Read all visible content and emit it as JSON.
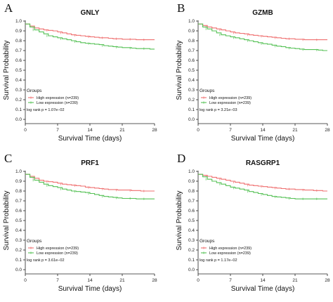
{
  "colors": {
    "high": "#ef6f6f",
    "low": "#55c155",
    "axis": "#222222"
  },
  "chart_data": [
    {
      "type": "line",
      "panel": "A",
      "title": "GNLY",
      "xlabel": "Survival Time (days)",
      "ylabel": "Survival Probability",
      "xlim": [
        0,
        28
      ],
      "ylim": [
        0,
        1
      ],
      "xticks": [
        0,
        7,
        14,
        21,
        28
      ],
      "yticks": [
        0.0,
        0.1,
        0.2,
        0.3,
        0.4,
        0.5,
        0.6,
        0.7,
        0.8,
        0.9,
        1.0
      ],
      "legend_title": "Groups",
      "legend_position": "bottom-left",
      "pvalue_text": "log rank p = 1.07e−02",
      "series": [
        {
          "name": "High expression (n=239)",
          "color_key": "high",
          "x": [
            0,
            1,
            2,
            3,
            4,
            5,
            6,
            7,
            8,
            9,
            10,
            11,
            12,
            13,
            14,
            15,
            16,
            17,
            18,
            19,
            20,
            21,
            22,
            23,
            24,
            25,
            26,
            27,
            28
          ],
          "y": [
            0.97,
            0.95,
            0.93,
            0.92,
            0.91,
            0.905,
            0.9,
            0.89,
            0.88,
            0.87,
            0.86,
            0.855,
            0.85,
            0.845,
            0.84,
            0.835,
            0.83,
            0.83,
            0.825,
            0.82,
            0.82,
            0.815,
            0.815,
            0.815,
            0.81,
            0.81,
            0.81,
            0.81,
            0.81
          ]
        },
        {
          "name": "Low expression (n=239)",
          "color_key": "low",
          "x": [
            0,
            1,
            2,
            3,
            4,
            5,
            6,
            7,
            8,
            9,
            10,
            11,
            12,
            13,
            14,
            15,
            16,
            17,
            18,
            19,
            20,
            21,
            22,
            23,
            24,
            25,
            26,
            27,
            28
          ],
          "y": [
            0.97,
            0.94,
            0.91,
            0.89,
            0.87,
            0.85,
            0.84,
            0.83,
            0.82,
            0.81,
            0.8,
            0.79,
            0.78,
            0.775,
            0.77,
            0.765,
            0.76,
            0.75,
            0.745,
            0.74,
            0.735,
            0.73,
            0.73,
            0.725,
            0.72,
            0.72,
            0.72,
            0.715,
            0.715
          ]
        }
      ]
    },
    {
      "type": "line",
      "panel": "B",
      "title": "GZMB",
      "xlabel": "Survival Time (days)",
      "ylabel": "Survival Probability",
      "xlim": [
        0,
        28
      ],
      "ylim": [
        0,
        1
      ],
      "xticks": [
        0,
        7,
        14,
        21,
        28
      ],
      "yticks": [
        0.0,
        0.1,
        0.2,
        0.3,
        0.4,
        0.5,
        0.6,
        0.7,
        0.8,
        0.9,
        1.0
      ],
      "legend_title": "Groups",
      "legend_position": "bottom-left",
      "pvalue_text": "log rank p = 3.21e−03",
      "series": [
        {
          "name": "High expression (n=239)",
          "color_key": "high",
          "x": [
            0,
            1,
            2,
            3,
            4,
            5,
            6,
            7,
            8,
            9,
            10,
            11,
            12,
            13,
            14,
            15,
            16,
            17,
            18,
            19,
            20,
            21,
            22,
            23,
            24,
            25,
            26,
            27,
            28
          ],
          "y": [
            0.97,
            0.955,
            0.94,
            0.93,
            0.92,
            0.91,
            0.9,
            0.89,
            0.88,
            0.875,
            0.87,
            0.86,
            0.855,
            0.85,
            0.845,
            0.84,
            0.835,
            0.83,
            0.825,
            0.82,
            0.82,
            0.815,
            0.815,
            0.81,
            0.81,
            0.81,
            0.81,
            0.81,
            0.81
          ]
        },
        {
          "name": "Low expression (n=239)",
          "color_key": "low",
          "x": [
            0,
            1,
            2,
            3,
            4,
            5,
            6,
            7,
            8,
            9,
            10,
            11,
            12,
            13,
            14,
            15,
            16,
            17,
            18,
            19,
            20,
            21,
            22,
            23,
            24,
            25,
            26,
            27,
            28
          ],
          "y": [
            0.97,
            0.94,
            0.92,
            0.9,
            0.88,
            0.86,
            0.85,
            0.84,
            0.83,
            0.82,
            0.81,
            0.8,
            0.79,
            0.78,
            0.77,
            0.765,
            0.755,
            0.745,
            0.74,
            0.73,
            0.725,
            0.72,
            0.715,
            0.71,
            0.71,
            0.71,
            0.705,
            0.7,
            0.7
          ]
        }
      ]
    },
    {
      "type": "line",
      "panel": "C",
      "title": "PRF1",
      "xlabel": "Survival Time (days)",
      "ylabel": "Survival Probability",
      "xlim": [
        0,
        28
      ],
      "ylim": [
        0,
        1
      ],
      "xticks": [
        0,
        7,
        14,
        21,
        28
      ],
      "yticks": [
        0.0,
        0.1,
        0.2,
        0.3,
        0.4,
        0.5,
        0.6,
        0.7,
        0.8,
        0.9,
        1.0
      ],
      "legend_title": "Groups",
      "legend_position": "bottom-left",
      "pvalue_text": "log rank p = 3.61e−02",
      "series": [
        {
          "name": "High expression (n=239)",
          "color_key": "high",
          "x": [
            0,
            1,
            2,
            3,
            4,
            5,
            6,
            7,
            8,
            9,
            10,
            11,
            12,
            13,
            14,
            15,
            16,
            17,
            18,
            19,
            20,
            21,
            22,
            23,
            24,
            25,
            26,
            27,
            28
          ],
          "y": [
            0.97,
            0.95,
            0.93,
            0.91,
            0.9,
            0.895,
            0.89,
            0.88,
            0.87,
            0.865,
            0.86,
            0.855,
            0.85,
            0.84,
            0.835,
            0.83,
            0.825,
            0.82,
            0.815,
            0.815,
            0.81,
            0.81,
            0.81,
            0.805,
            0.805,
            0.8,
            0.8,
            0.8,
            0.8
          ]
        },
        {
          "name": "Low expression (n=239)",
          "color_key": "low",
          "x": [
            0,
            1,
            2,
            3,
            4,
            5,
            6,
            7,
            8,
            9,
            10,
            11,
            12,
            13,
            14,
            15,
            16,
            17,
            18,
            19,
            20,
            21,
            22,
            23,
            24,
            25,
            26,
            27,
            28
          ],
          "y": [
            0.97,
            0.94,
            0.91,
            0.89,
            0.87,
            0.855,
            0.845,
            0.835,
            0.82,
            0.81,
            0.8,
            0.795,
            0.79,
            0.785,
            0.775,
            0.765,
            0.755,
            0.745,
            0.74,
            0.735,
            0.73,
            0.725,
            0.725,
            0.725,
            0.72,
            0.72,
            0.72,
            0.72,
            0.72
          ]
        }
      ]
    },
    {
      "type": "line",
      "panel": "D",
      "title": "RASGRP1",
      "xlabel": "Survival Time (days)",
      "ylabel": "Survival Probability",
      "xlim": [
        0,
        28
      ],
      "ylim": [
        0,
        1
      ],
      "xticks": [
        0,
        7,
        14,
        21,
        28
      ],
      "yticks": [
        0.0,
        0.1,
        0.2,
        0.3,
        0.4,
        0.5,
        0.6,
        0.7,
        0.8,
        0.9,
        1.0
      ],
      "legend_title": "Groups",
      "legend_position": "bottom-left",
      "pvalue_text": "log rank p = 1.17e−02",
      "series": [
        {
          "name": "High expression (n=239)",
          "color_key": "high",
          "x": [
            0,
            1,
            2,
            3,
            4,
            5,
            6,
            7,
            8,
            9,
            10,
            11,
            12,
            13,
            14,
            15,
            16,
            17,
            18,
            19,
            20,
            21,
            22,
            23,
            24,
            25,
            26,
            27,
            28
          ],
          "y": [
            0.97,
            0.96,
            0.95,
            0.94,
            0.93,
            0.92,
            0.91,
            0.9,
            0.89,
            0.88,
            0.87,
            0.86,
            0.855,
            0.85,
            0.845,
            0.84,
            0.835,
            0.83,
            0.825,
            0.82,
            0.82,
            0.815,
            0.815,
            0.81,
            0.81,
            0.805,
            0.805,
            0.8,
            0.8
          ]
        },
        {
          "name": "Low expression (n=239)",
          "color_key": "low",
          "x": [
            0,
            1,
            2,
            3,
            4,
            5,
            6,
            7,
            8,
            9,
            10,
            11,
            12,
            13,
            14,
            15,
            16,
            17,
            18,
            19,
            20,
            21,
            22,
            23,
            24,
            25,
            26,
            27,
            28
          ],
          "y": [
            0.97,
            0.945,
            0.92,
            0.9,
            0.885,
            0.87,
            0.855,
            0.84,
            0.83,
            0.82,
            0.81,
            0.795,
            0.785,
            0.775,
            0.765,
            0.755,
            0.745,
            0.74,
            0.735,
            0.73,
            0.725,
            0.72,
            0.72,
            0.72,
            0.72,
            0.72,
            0.72,
            0.72,
            0.72
          ]
        }
      ]
    }
  ]
}
